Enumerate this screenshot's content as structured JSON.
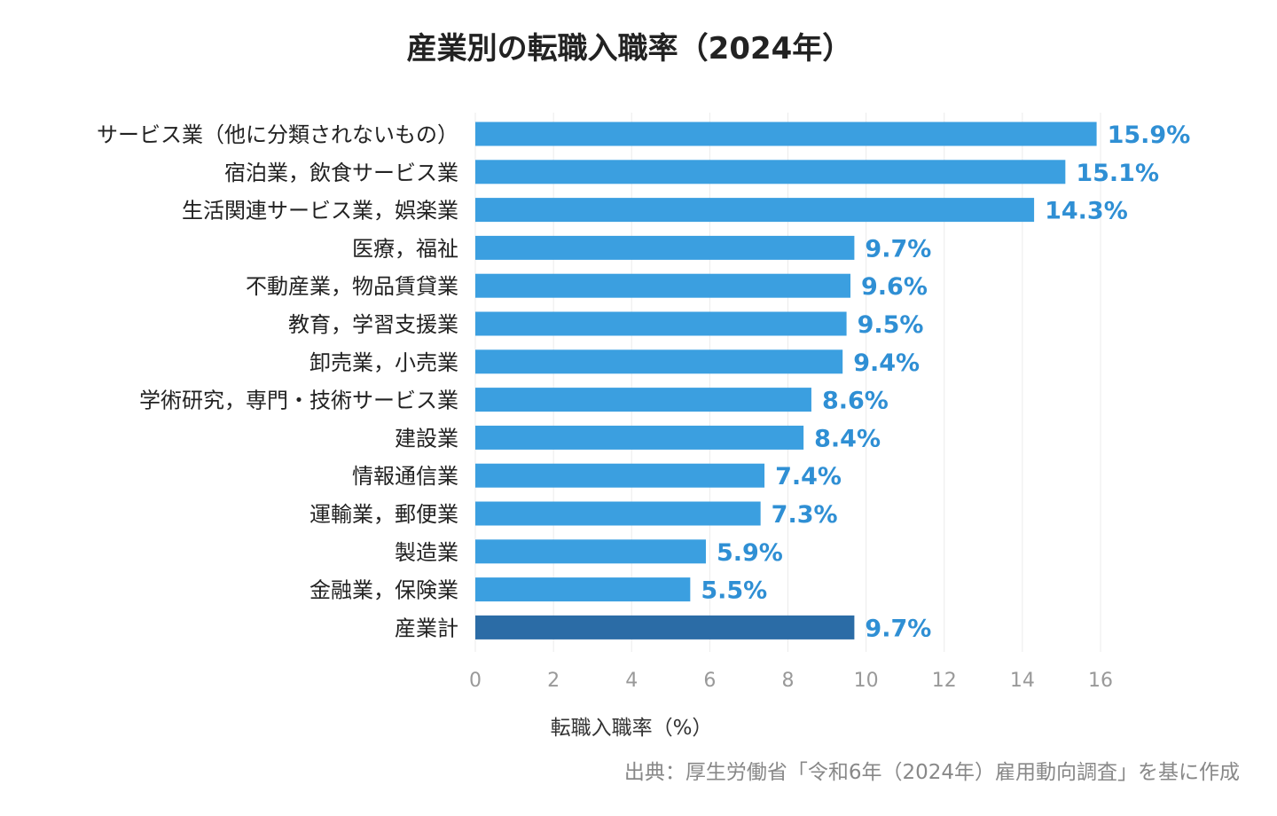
{
  "chart_data": {
    "type": "bar",
    "orientation": "horizontal",
    "title": "産業別の転職入職率（2024年）",
    "xlabel": "転職入職率（%）",
    "ylabel": "",
    "xlim": [
      0,
      16
    ],
    "x_ticks": [
      0,
      2,
      4,
      6,
      8,
      10,
      12,
      14,
      16
    ],
    "grid": "vertical",
    "source": "出典：厚生労働省「令和6年（2024年）雇用動向調査」を基に作成",
    "colors": {
      "bar": "#3b9fe0",
      "highlight_bar": "#2b6ca6",
      "value_label": "#2f8fd4"
    },
    "categories": [
      "サービス業（他に分類されないもの）",
      "宿泊業，飲食サービス業",
      "生活関連サービス業，娯楽業",
      "医療，福祉",
      "不動産業，物品賃貸業",
      "教育，学習支援業",
      "卸売業，小売業",
      "学術研究，専門・技術サービス業",
      "建設業",
      "情報通信業",
      "運輸業，郵便業",
      "製造業",
      "金融業，保険業",
      "産業計"
    ],
    "values": [
      15.9,
      15.1,
      14.3,
      9.7,
      9.6,
      9.5,
      9.4,
      8.6,
      8.4,
      7.4,
      7.3,
      5.9,
      5.5,
      9.7
    ],
    "value_labels": [
      "15.9%",
      "15.1%",
      "14.3%",
      "9.7%",
      "9.6%",
      "9.5%",
      "9.4%",
      "8.6%",
      "8.4%",
      "7.4%",
      "7.3%",
      "5.9%",
      "5.5%",
      "9.7%"
    ],
    "highlight": [
      "産業計"
    ]
  }
}
